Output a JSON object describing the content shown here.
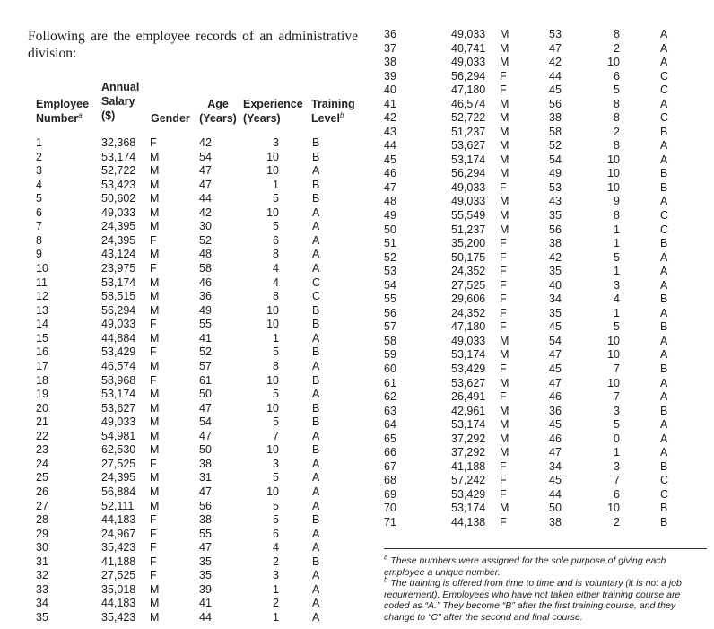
{
  "intro": "Following are the employee records of an administrative division:",
  "headers": {
    "number": [
      "Employee",
      "Number"
    ],
    "number_note": "a",
    "salary": [
      "Annual",
      "Salary",
      "($)"
    ],
    "gender": "Gender",
    "age": [
      "Age",
      "(Years)"
    ],
    "experience": [
      "Experience",
      "(Years)"
    ],
    "training": [
      "Training",
      "Level"
    ],
    "training_note": "b"
  },
  "records": [
    [
      "1",
      "32,368",
      "F",
      "42",
      "3",
      "B"
    ],
    [
      "2",
      "53,174",
      "M",
      "54",
      "10",
      "B"
    ],
    [
      "3",
      "52,722",
      "M",
      "47",
      "10",
      "A"
    ],
    [
      "4",
      "53,423",
      "M",
      "47",
      "1",
      "B"
    ],
    [
      "5",
      "50,602",
      "M",
      "44",
      "5",
      "B"
    ],
    [
      "6",
      "49,033",
      "M",
      "42",
      "10",
      "A"
    ],
    [
      "7",
      "24,395",
      "M",
      "30",
      "5",
      "A"
    ],
    [
      "8",
      "24,395",
      "F",
      "52",
      "6",
      "A"
    ],
    [
      "9",
      "43,124",
      "M",
      "48",
      "8",
      "A"
    ],
    [
      "10",
      "23,975",
      "F",
      "58",
      "4",
      "A"
    ],
    [
      "11",
      "53,174",
      "M",
      "46",
      "4",
      "C"
    ],
    [
      "12",
      "58,515",
      "M",
      "36",
      "8",
      "C"
    ],
    [
      "13",
      "56,294",
      "M",
      "49",
      "10",
      "B"
    ],
    [
      "14",
      "49,033",
      "F",
      "55",
      "10",
      "B"
    ],
    [
      "15",
      "44,884",
      "M",
      "41",
      "1",
      "A"
    ],
    [
      "16",
      "53,429",
      "F",
      "52",
      "5",
      "B"
    ],
    [
      "17",
      "46,574",
      "M",
      "57",
      "8",
      "A"
    ],
    [
      "18",
      "58,968",
      "F",
      "61",
      "10",
      "B"
    ],
    [
      "19",
      "53,174",
      "M",
      "50",
      "5",
      "A"
    ],
    [
      "20",
      "53,627",
      "M",
      "47",
      "10",
      "B"
    ],
    [
      "21",
      "49,033",
      "M",
      "54",
      "5",
      "B"
    ],
    [
      "22",
      "54,981",
      "M",
      "47",
      "7",
      "A"
    ],
    [
      "23",
      "62,530",
      "M",
      "50",
      "10",
      "B"
    ],
    [
      "24",
      "27,525",
      "F",
      "38",
      "3",
      "A"
    ],
    [
      "25",
      "24,395",
      "M",
      "31",
      "5",
      "A"
    ],
    [
      "26",
      "56,884",
      "M",
      "47",
      "10",
      "A"
    ],
    [
      "27",
      "52,111",
      "M",
      "56",
      "5",
      "A"
    ],
    [
      "28",
      "44,183",
      "F",
      "38",
      "5",
      "B"
    ],
    [
      "29",
      "24,967",
      "F",
      "55",
      "6",
      "A"
    ],
    [
      "30",
      "35,423",
      "F",
      "47",
      "4",
      "A"
    ],
    [
      "31",
      "41,188",
      "F",
      "35",
      "2",
      "B"
    ],
    [
      "32",
      "27,525",
      "F",
      "35",
      "3",
      "A"
    ],
    [
      "33",
      "35,018",
      "M",
      "39",
      "1",
      "A"
    ],
    [
      "34",
      "44,183",
      "M",
      "41",
      "2",
      "A"
    ],
    [
      "35",
      "35,423",
      "M",
      "44",
      "1",
      "A"
    ],
    [
      "36",
      "49,033",
      "M",
      "53",
      "8",
      "A"
    ],
    [
      "37",
      "40,741",
      "M",
      "47",
      "2",
      "A"
    ],
    [
      "38",
      "49,033",
      "M",
      "42",
      "10",
      "A"
    ],
    [
      "39",
      "56,294",
      "F",
      "44",
      "6",
      "C"
    ],
    [
      "40",
      "47,180",
      "F",
      "45",
      "5",
      "C"
    ],
    [
      "41",
      "46,574",
      "M",
      "56",
      "8",
      "A"
    ],
    [
      "42",
      "52,722",
      "M",
      "38",
      "8",
      "C"
    ],
    [
      "43",
      "51,237",
      "M",
      "58",
      "2",
      "B"
    ],
    [
      "44",
      "53,627",
      "M",
      "52",
      "8",
      "A"
    ],
    [
      "45",
      "53,174",
      "M",
      "54",
      "10",
      "A"
    ],
    [
      "46",
      "56,294",
      "M",
      "49",
      "10",
      "B"
    ],
    [
      "47",
      "49,033",
      "F",
      "53",
      "10",
      "B"
    ],
    [
      "48",
      "49,033",
      "M",
      "43",
      "9",
      "A"
    ],
    [
      "49",
      "55,549",
      "M",
      "35",
      "8",
      "C"
    ],
    [
      "50",
      "51,237",
      "M",
      "56",
      "1",
      "C"
    ],
    [
      "51",
      "35,200",
      "F",
      "38",
      "1",
      "B"
    ],
    [
      "52",
      "50,175",
      "F",
      "42",
      "5",
      "A"
    ],
    [
      "53",
      "24,352",
      "F",
      "35",
      "1",
      "A"
    ],
    [
      "54",
      "27,525",
      "F",
      "40",
      "3",
      "A"
    ],
    [
      "55",
      "29,606",
      "F",
      "34",
      "4",
      "B"
    ],
    [
      "56",
      "24,352",
      "F",
      "35",
      "1",
      "A"
    ],
    [
      "57",
      "47,180",
      "F",
      "45",
      "5",
      "B"
    ],
    [
      "58",
      "49,033",
      "M",
      "54",
      "10",
      "A"
    ],
    [
      "59",
      "53,174",
      "M",
      "47",
      "10",
      "A"
    ],
    [
      "60",
      "53,429",
      "F",
      "45",
      "7",
      "B"
    ],
    [
      "61",
      "53,627",
      "M",
      "47",
      "10",
      "A"
    ],
    [
      "62",
      "26,491",
      "F",
      "46",
      "7",
      "A"
    ],
    [
      "63",
      "42,961",
      "M",
      "36",
      "3",
      "B"
    ],
    [
      "64",
      "53,174",
      "M",
      "45",
      "5",
      "A"
    ],
    [
      "65",
      "37,292",
      "M",
      "46",
      "0",
      "A"
    ],
    [
      "66",
      "37,292",
      "M",
      "47",
      "1",
      "A"
    ],
    [
      "67",
      "41,188",
      "F",
      "34",
      "3",
      "B"
    ],
    [
      "68",
      "57,242",
      "F",
      "45",
      "7",
      "C"
    ],
    [
      "69",
      "53,429",
      "F",
      "44",
      "6",
      "C"
    ],
    [
      "70",
      "53,174",
      "M",
      "50",
      "10",
      "B"
    ],
    [
      "71",
      "44,138",
      "F",
      "38",
      "2",
      "B"
    ]
  ],
  "footnotes": [
    {
      "mark": "a",
      "text": "These numbers were assigned for the sole purpose of giving each employee a unique number."
    },
    {
      "mark": "b",
      "text": "The training is offered from time to time and is voluntary (it is not a job requirement). Employees who have not taken either training course are coded as “A.” They become “B” after the first training course, and they change to “C” after the second and final course."
    }
  ]
}
